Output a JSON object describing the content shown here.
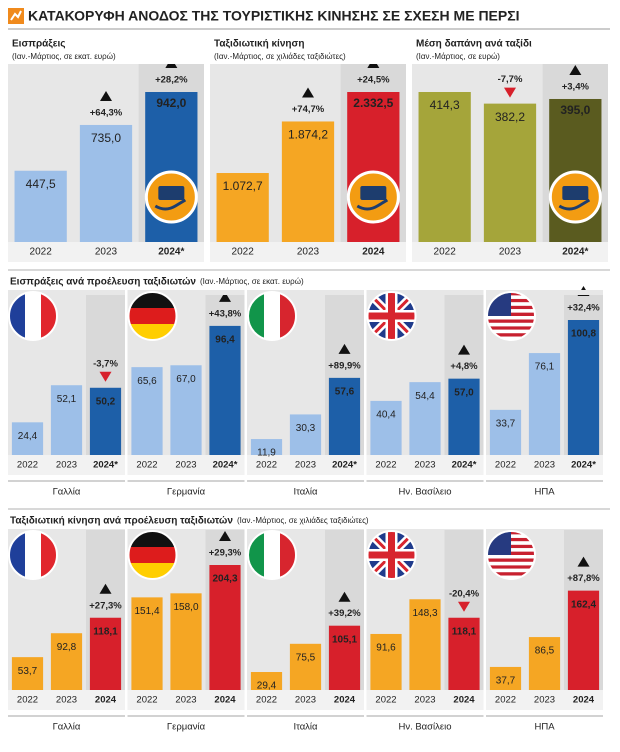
{
  "title": "ΚΑΤΑΚΟΡΥΦΗ ΑΝΟΔΟΣ ΤΗΣ ΤΟΥΡΙΣΤΙΚΗΣ ΚΙΝΗΣΗΣ ΣΕ ΣΧΕΣΗ ΜΕ ΠΕΡΣΙ",
  "chart_data": [
    {
      "type": "bar",
      "title": "Εισπράξεις",
      "subtitle": "(Ιαν.-Μάρτιος, σε εκατ. ευρώ)",
      "categories": [
        "2022",
        "2023",
        "2024*"
      ],
      "values": [
        447.5,
        735.0,
        942.0
      ],
      "value_labels": [
        "447,5",
        "735,0",
        "942,0"
      ],
      "annotations": [
        null,
        "+64,3%",
        "+28,2%"
      ],
      "colors": [
        "#9dbfe8",
        "#9dbfe8",
        "#1d5fa8"
      ]
    },
    {
      "type": "bar",
      "title": "Ταξιδιωτική κίνηση",
      "subtitle": "(Ιαν.-Μάρτιος, σε χιλιάδες ταξιδιώτες)",
      "categories": [
        "2022",
        "2023",
        "2024"
      ],
      "values": [
        1072.7,
        1874.2,
        2332.5
      ],
      "value_labels": [
        "1.072,7",
        "1.874,2",
        "2.332,5"
      ],
      "annotations": [
        null,
        "+74,7%",
        "+24,5%"
      ],
      "colors": [
        "#f5a623",
        "#f5a623",
        "#d7202b"
      ]
    },
    {
      "type": "bar",
      "title": "Μέση δαπάνη ανά ταξίδι",
      "subtitle": "(Ιαν.-Μάρτιος, σε ευρώ)",
      "categories": [
        "2022",
        "2023",
        "2024*"
      ],
      "values": [
        414.3,
        382.2,
        395.0
      ],
      "value_labels": [
        "414,3",
        "382,2",
        "395,0"
      ],
      "annotations": [
        null,
        "-7,7%",
        "+3,4%"
      ],
      "colors": [
        "#a5a53a",
        "#a5a53a",
        "#5a5b1f"
      ]
    },
    {
      "type": "grouped-bar",
      "title": "Εισπράξεις ανά προέλευση ταξιδιωτών",
      "subtitle": "(Ιαν.-Μάρτιος, σε εκατ. ευρώ)",
      "colors": [
        "#9dbfe8",
        "#9dbfe8",
        "#1d5fa8"
      ],
      "groups": [
        {
          "name": "Γαλλία",
          "categories": [
            "2022",
            "2023",
            "2024*"
          ],
          "values": [
            24.4,
            52.1,
            50.2
          ],
          "value_labels": [
            "24,4",
            "52,1",
            "50,2"
          ],
          "annotations": [
            null,
            null,
            "-3,7%"
          ]
        },
        {
          "name": "Γερμανία",
          "categories": [
            "2022",
            "2023",
            "2024*"
          ],
          "values": [
            65.6,
            67.0,
            96.4
          ],
          "value_labels": [
            "65,6",
            "67,0",
            "96,4"
          ],
          "annotations": [
            null,
            null,
            "+43,8%"
          ]
        },
        {
          "name": "Ιταλία",
          "categories": [
            "2022",
            "2023",
            "2024*"
          ],
          "values": [
            11.9,
            30.3,
            57.6
          ],
          "value_labels": [
            "11,9",
            "30,3",
            "57,6"
          ],
          "annotations": [
            null,
            null,
            "+89,9%"
          ]
        },
        {
          "name": "Ην. Βασίλειο",
          "categories": [
            "2022",
            "2023",
            "2024*"
          ],
          "values": [
            40.4,
            54.4,
            57.0
          ],
          "value_labels": [
            "40,4",
            "54,4",
            "57,0"
          ],
          "annotations": [
            null,
            null,
            "+4,8%"
          ]
        },
        {
          "name": "ΗΠΑ",
          "categories": [
            "2022",
            "2023",
            "2024*"
          ],
          "values": [
            33.7,
            76.1,
            100.8
          ],
          "value_labels": [
            "33,7",
            "76,1",
            "100,8"
          ],
          "annotations": [
            null,
            null,
            "+32,4%"
          ]
        }
      ]
    },
    {
      "type": "grouped-bar",
      "title": "Ταξιδιωτική κίνηση ανά προέλευση ταξιδιωτών",
      "subtitle": "(Ιαν.-Μάρτιος, σε χιλιάδες ταξιδιώτες)",
      "colors": [
        "#f5a623",
        "#f5a623",
        "#d7202b"
      ],
      "groups": [
        {
          "name": "Γαλλία",
          "categories": [
            "2022",
            "2023",
            "2024"
          ],
          "values": [
            53.7,
            92.8,
            118.1
          ],
          "value_labels": [
            "53,7",
            "92,8",
            "118,1"
          ],
          "annotations": [
            null,
            null,
            "+27,3%"
          ]
        },
        {
          "name": "Γερμανία",
          "categories": [
            "2022",
            "2023",
            "2024"
          ],
          "values": [
            151.4,
            158.0,
            204.3
          ],
          "value_labels": [
            "151,4",
            "158,0",
            "204,3"
          ],
          "annotations": [
            null,
            null,
            "+29,3%"
          ]
        },
        {
          "name": "Ιταλία",
          "categories": [
            "2022",
            "2023",
            "2024"
          ],
          "values": [
            29.4,
            75.5,
            105.1
          ],
          "value_labels": [
            "29,4",
            "75,5",
            "105,1"
          ],
          "annotations": [
            null,
            null,
            "+39,2%"
          ]
        },
        {
          "name": "Ην. Βασίλειο",
          "categories": [
            "2022",
            "2023",
            "2024"
          ],
          "values": [
            91.6,
            148.3,
            118.1
          ],
          "value_labels": [
            "91,6",
            "148,3",
            "118,1"
          ],
          "annotations": [
            null,
            null,
            "-20,4%"
          ]
        },
        {
          "name": "ΗΠΑ",
          "categories": [
            "2022",
            "2023",
            "2024"
          ],
          "values": [
            37.7,
            86.5,
            162.4
          ],
          "value_labels": [
            "37,7",
            "86,5",
            "162,4"
          ],
          "annotations": [
            null,
            null,
            "+87,8%"
          ]
        }
      ]
    }
  ]
}
